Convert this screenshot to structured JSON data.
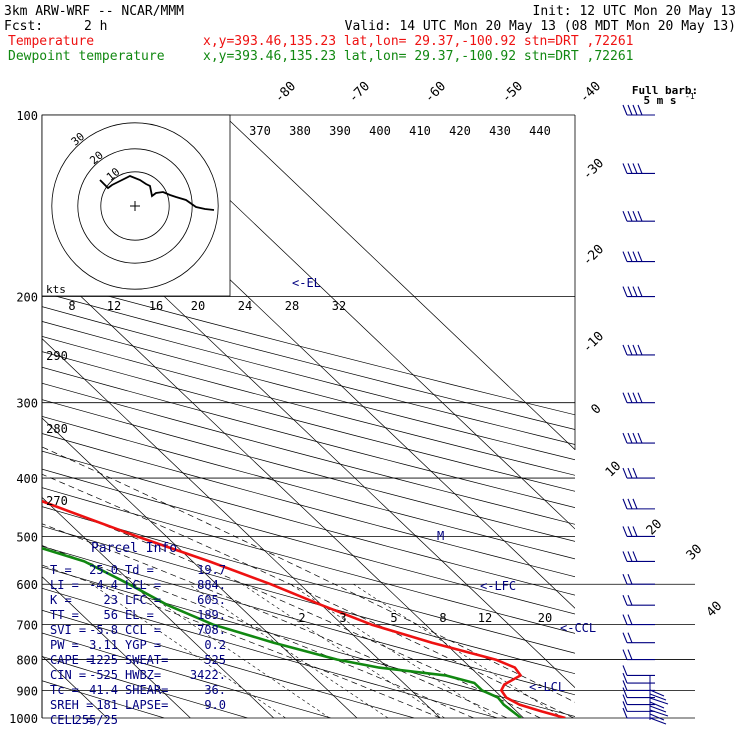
{
  "header": {
    "model": "3km ARW-WRF -- NCAR/MMM",
    "init": "Init: 12 UTC Mon 20 May 13",
    "fcst_label": "Fcst:",
    "fcst_value": "2 h",
    "valid": "Valid: 14 UTC Mon 20 May 13 (08 MDT Mon 20 May 13)",
    "temp_label": "Temperature",
    "temp_info": "x,y=393.46,135.23   lat,lon= 29.37,-100.92  stn=DRT ,72261",
    "dew_label": "Dewpoint temperature",
    "dew_info": "x,y=393.46,135.23   lat,lon= 29.37,-100.92  stn=DRT ,72261"
  },
  "colors": {
    "temperature": "#ee1111",
    "dewpoint": "#118811",
    "text": "#000080",
    "grid": "#000000"
  },
  "barb_key": {
    "title": "Full barb:",
    "value": "5 m s",
    "unit_exp": "-1"
  },
  "parcel_info": {
    "title": "Parcel Info",
    "rows": [
      [
        "T  =",
        "25.0",
        "Td =",
        "19.7"
      ],
      [
        "LI =",
        "-4.4",
        "LCL =",
        "884."
      ],
      [
        "K  =",
        "23",
        "LFC =",
        "605."
      ],
      [
        "TT =",
        "56",
        "EL =",
        "189."
      ],
      [
        "SVI =",
        "-5.8",
        "CCL =",
        "708."
      ],
      [
        "PW =",
        "3.11",
        "YGP =",
        "0.2"
      ],
      [
        "CAPE =",
        "1225",
        "SWEAT=",
        "525"
      ],
      [
        "CIN =",
        "-525",
        "HWBZ=",
        "3422."
      ],
      [
        "Tc =",
        "41.4",
        "SHEAR=",
        "36."
      ],
      [
        "SREH =",
        "181",
        "LAPSE=",
        "9.0"
      ],
      [
        "CELL =",
        "255/25",
        "",
        ""
      ]
    ]
  },
  "level_labels": {
    "el": "<-EL",
    "lfc": "<-LFC",
    "ccl": "<-CCL",
    "lcl": "<-LCL",
    "m": "M"
  },
  "hodograph": {
    "unit": "kts",
    "ring_labels": [
      "10",
      "20",
      "30"
    ]
  },
  "chart_data": {
    "type": "skew-T log-P",
    "pressure_ticks": [
      100,
      200,
      300,
      400,
      500,
      600,
      700,
      800,
      900,
      1000
    ],
    "isotherm_labels": [
      -80,
      -70,
      -60,
      -50,
      -40,
      -30,
      -20,
      -10,
      0,
      10,
      20,
      30,
      40
    ],
    "theta_labels": [
      370,
      380,
      390,
      400,
      410,
      420,
      430,
      440
    ],
    "theta_left_labels": [
      290,
      280,
      270
    ],
    "hodo_axis_labels": [
      8,
      12,
      16,
      20,
      24,
      28,
      32
    ],
    "mixing_ratio_labels": [
      2,
      3,
      5,
      8,
      12,
      20
    ],
    "ylim": [
      1000,
      100
    ],
    "xlim": [
      -40,
      50
    ],
    "series": [
      {
        "name": "Temperature",
        "points": [
          [
            1000,
            25.0
          ],
          [
            975,
            23.0
          ],
          [
            950,
            21.2
          ],
          [
            925,
            20.5
          ],
          [
            900,
            20.8
          ],
          [
            880,
            21.9
          ],
          [
            850,
            25.0
          ],
          [
            825,
            25.3
          ],
          [
            800,
            24.0
          ],
          [
            750,
            18.5
          ],
          [
            700,
            13.5
          ],
          [
            650,
            10.0
          ],
          [
            600,
            6.5
          ],
          [
            550,
            2.0
          ],
          [
            500,
            -3.5
          ],
          [
            450,
            -9.0
          ],
          [
            400,
            -15.0
          ],
          [
            350,
            -22.0
          ],
          [
            300,
            -30.5
          ],
          [
            250,
            -40.5
          ],
          [
            225,
            -46.0
          ],
          [
            200,
            -53.0
          ],
          [
            189,
            -57.5
          ],
          [
            175,
            -63.0
          ],
          [
            150,
            -68.5
          ],
          [
            125,
            -70.5
          ],
          [
            100,
            -73.0
          ]
        ]
      },
      {
        "name": "Dewpoint temperature",
        "points": [
          [
            1000,
            19.7
          ],
          [
            975,
            19.5
          ],
          [
            950,
            19.3
          ],
          [
            925,
            19.5
          ],
          [
            900,
            18.5
          ],
          [
            875,
            18.5
          ],
          [
            850,
            16.0
          ],
          [
            825,
            9.0
          ],
          [
            800,
            5.0
          ],
          [
            750,
            -0.5
          ],
          [
            700,
            -5.5
          ],
          [
            650,
            -8.5
          ],
          [
            600,
            -10.5
          ],
          [
            550,
            -13.0
          ],
          [
            500,
            -19.5
          ],
          [
            450,
            -29.0
          ],
          [
            400,
            -38.0
          ],
          [
            350,
            -48.0
          ],
          [
            325,
            -55.0
          ],
          [
            300,
            -57.0
          ],
          [
            250,
            -61.0
          ],
          [
            225,
            -63.5
          ],
          [
            200,
            -66.0
          ],
          [
            175,
            -70.0
          ],
          [
            150,
            -74.0
          ],
          [
            125,
            -77.0
          ],
          [
            100,
            -80.0
          ]
        ]
      }
    ],
    "hodograph_trace": [
      [
        0,
        0
      ],
      [
        3,
        -1
      ],
      [
        6,
        -3
      ],
      [
        10,
        -5
      ],
      [
        14,
        -4
      ],
      [
        18,
        -5
      ],
      [
        22,
        -6
      ],
      [
        26,
        -7
      ],
      [
        30,
        -8
      ],
      [
        34,
        -9
      ],
      [
        36,
        -9.5
      ]
    ],
    "wind_barb_levels": [
      1000,
      975,
      950,
      925,
      900,
      875,
      850,
      800,
      750,
      700,
      650,
      600,
      550,
      500,
      450,
      400,
      350,
      300,
      250,
      200,
      175,
      150,
      125,
      100
    ]
  }
}
